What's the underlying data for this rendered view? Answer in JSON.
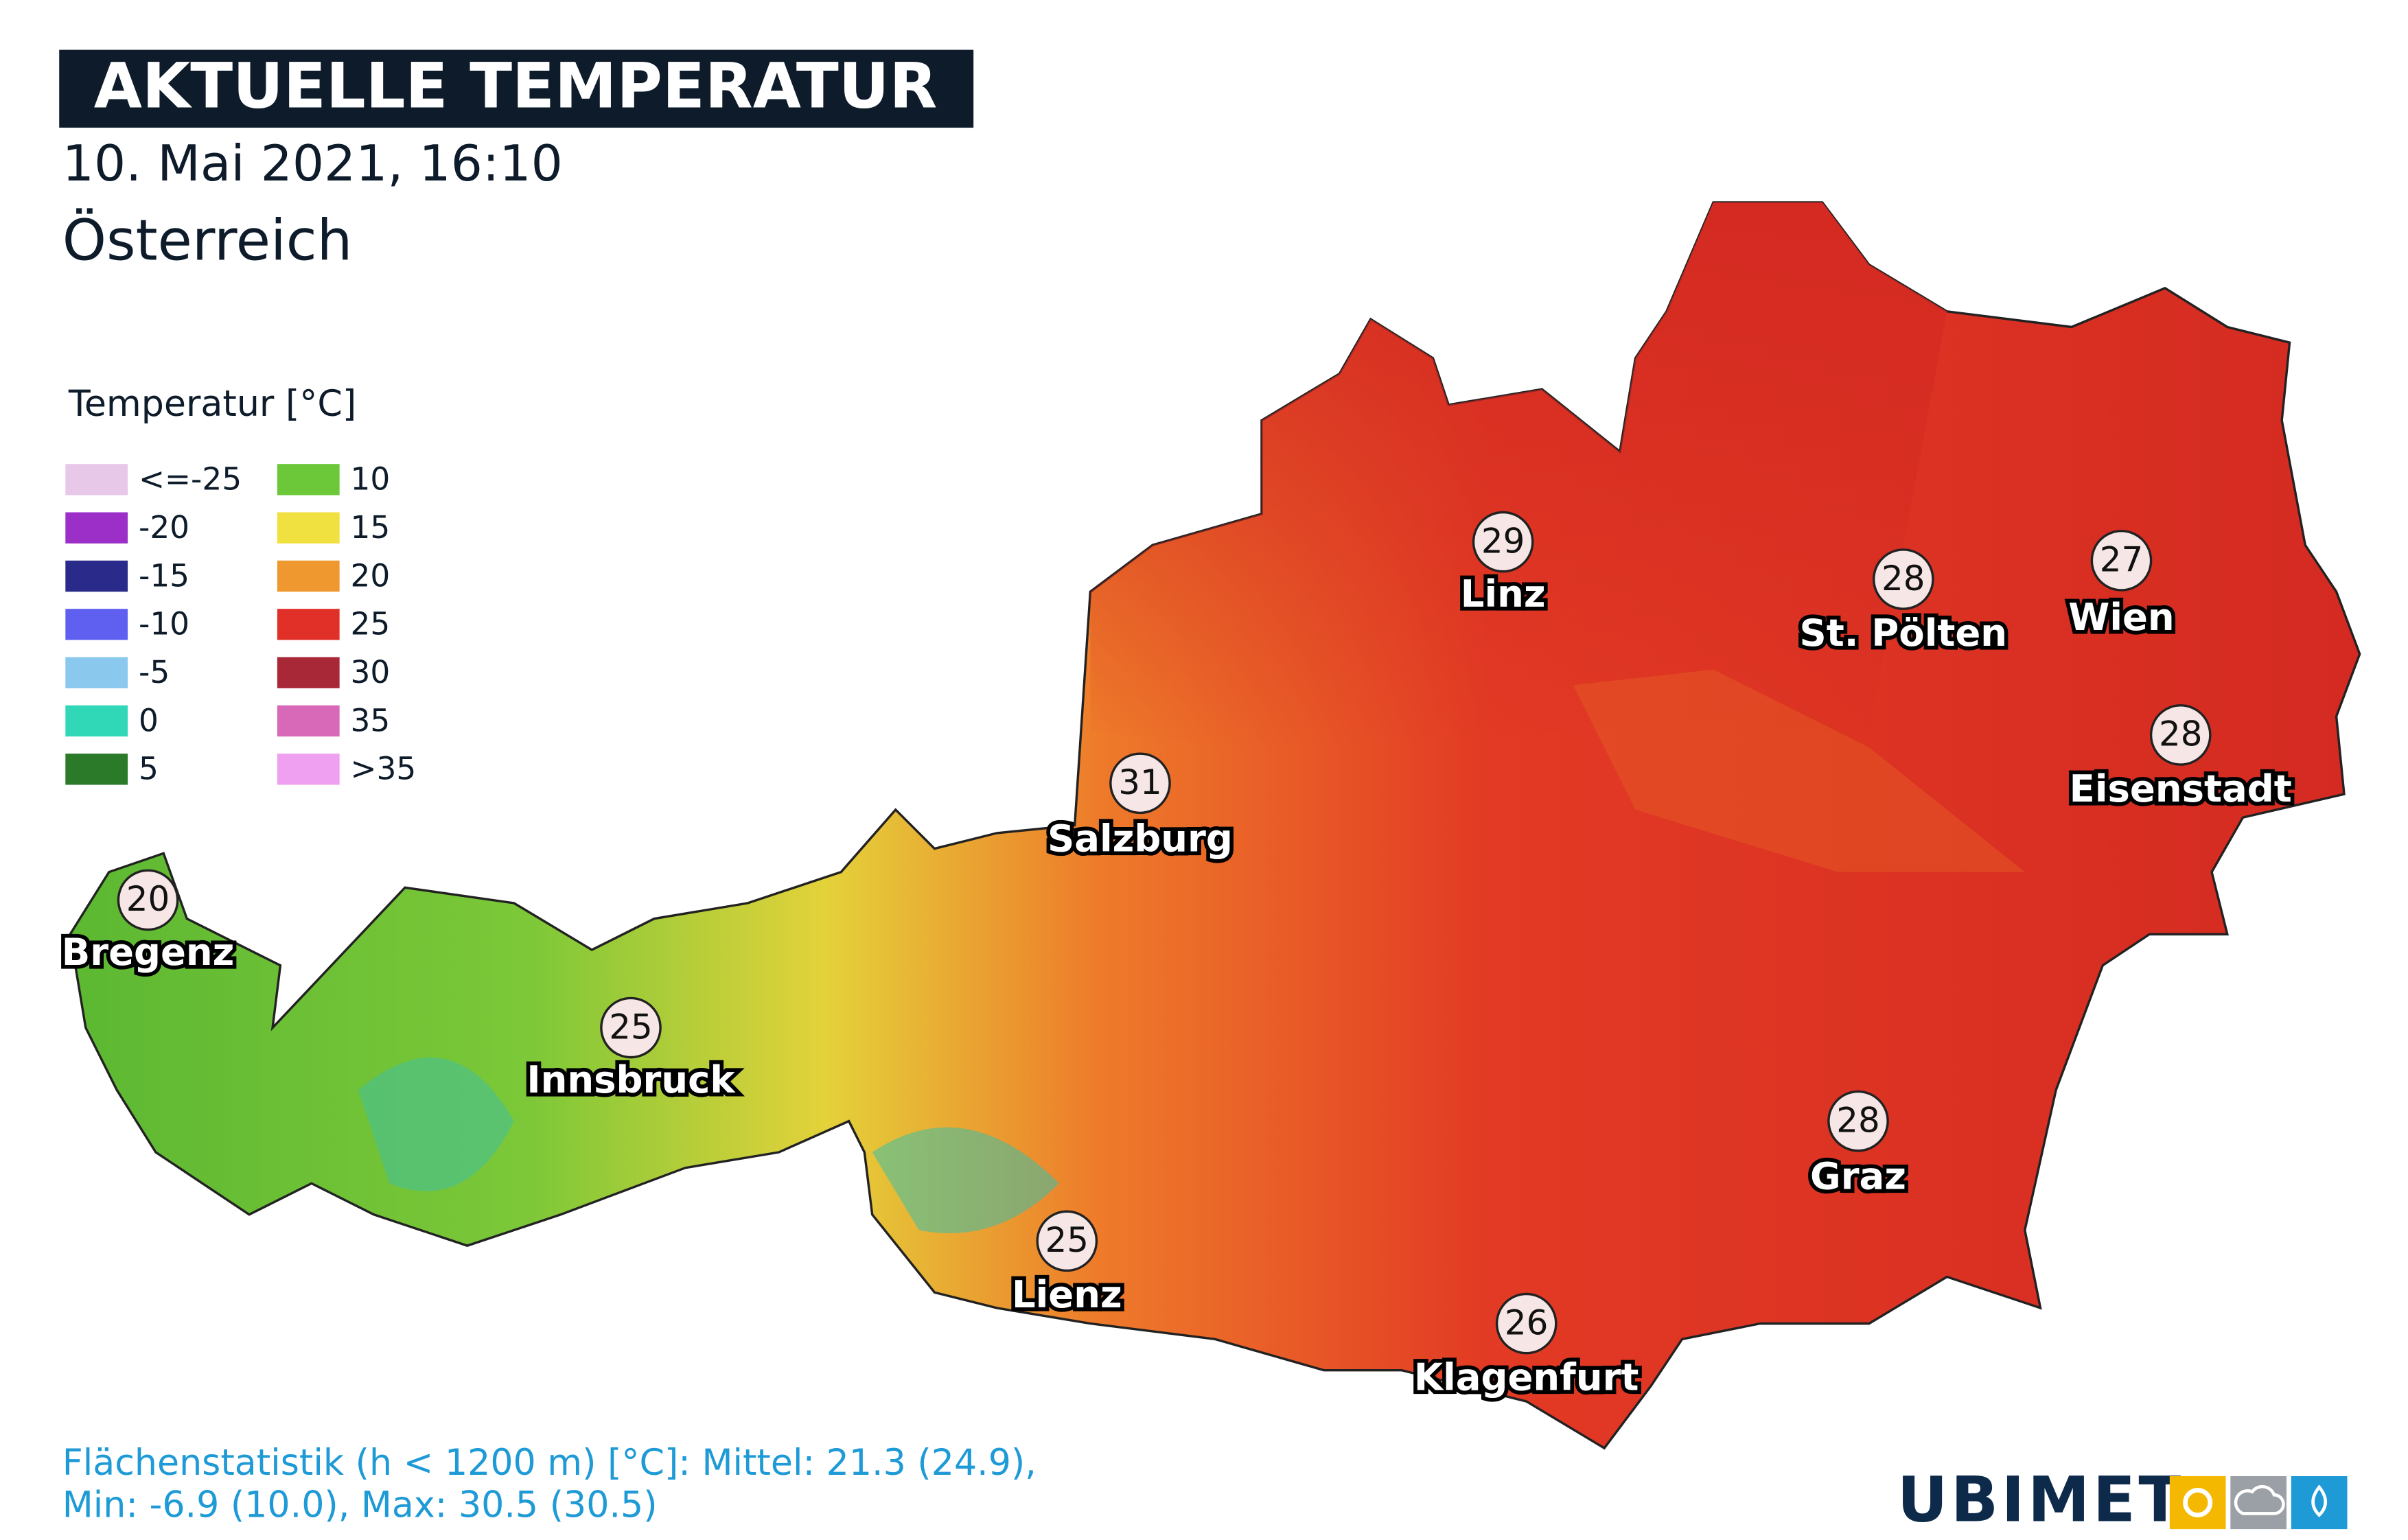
{
  "header": {
    "title": "AKTUELLE TEMPERATUR",
    "date": "10. Mai 2021, 16:10",
    "region": "Österreich"
  },
  "legend": {
    "title": "Temperatur [°C]",
    "items": [
      {
        "label": "<=-25",
        "color": "#e8c8e8"
      },
      {
        "label": "-20",
        "color": "#9b2fc8"
      },
      {
        "label": "-15",
        "color": "#2a2a8a"
      },
      {
        "label": "-10",
        "color": "#6060f0"
      },
      {
        "label": "-5",
        "color": "#8ac8ee"
      },
      {
        "label": "0",
        "color": "#30d8b8"
      },
      {
        "label": "5",
        "color": "#2a7a2a"
      },
      {
        "label": "10",
        "color": "#6cc838"
      },
      {
        "label": "15",
        "color": "#f0e040"
      },
      {
        "label": "20",
        "color": "#f09830"
      },
      {
        "label": "25",
        "color": "#e03028"
      },
      {
        "label": "30",
        "color": "#a82838"
      },
      {
        "label": "35",
        "color": "#d868b8"
      },
      {
        "label": ">35",
        "color": "#f0a0f0"
      }
    ]
  },
  "cities": [
    {
      "name": "Linz",
      "temp": 29
    },
    {
      "name": "St. Pölten",
      "temp": 28
    },
    {
      "name": "Wien",
      "temp": 27
    },
    {
      "name": "Eisenstadt",
      "temp": 28
    },
    {
      "name": "Salzburg",
      "temp": 31
    },
    {
      "name": "Bregenz",
      "temp": 20
    },
    {
      "name": "Innsbruck",
      "temp": 25
    },
    {
      "name": "Lienz",
      "temp": 25
    },
    {
      "name": "Graz",
      "temp": 28
    },
    {
      "name": "Klagenfurt",
      "temp": 26
    }
  ],
  "footer": {
    "line1": "Flächenstatistik (h < 1200 m) [°C]: Mittel: 21.3 (24.9),",
    "line2": "Min: -6.9 (10.0), Max: 30.5 (30.5)"
  },
  "brand": "UBIMET"
}
